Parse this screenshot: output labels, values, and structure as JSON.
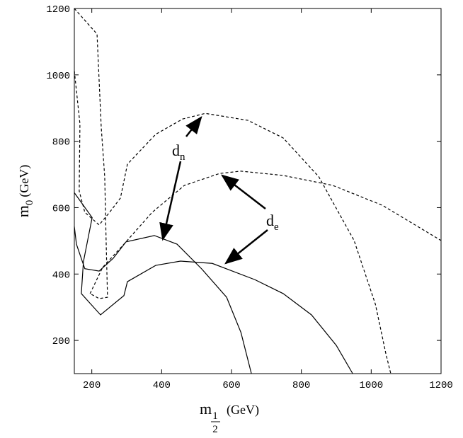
{
  "chart_data": {
    "type": "line",
    "x_label": {
      "main": "m",
      "sub_num": "1",
      "sub_den": "2",
      "unit": "(GeV)"
    },
    "y_label": {
      "main": "m",
      "sub": "0",
      "unit": "(GeV)"
    },
    "annotations": [
      {
        "text": "d",
        "sub": "n"
      },
      {
        "text": "d",
        "sub": "e"
      }
    ],
    "xlim": [
      150,
      1200
    ],
    "xticks": [
      200,
      400,
      600,
      800,
      1000,
      1200
    ],
    "ylim": [
      100,
      1200
    ],
    "yticks": [
      200,
      400,
      600,
      800,
      1000,
      1200
    ],
    "series": [
      {
        "color": "#000000",
        "dash": false,
        "x": [
          150,
          156,
          180,
          221,
          261,
          298,
          379,
          444,
          515,
          586,
          627,
          657
        ],
        "values": [
          543,
          490,
          416,
          409,
          447,
          497,
          516,
          490,
          415,
          330,
          224,
          100
        ]
      },
      {
        "color": "#000000",
        "dash": false,
        "x": [
          150,
          201,
          176,
          170,
          225,
          292,
          302,
          383,
          454,
          545,
          667,
          748,
          829,
          900,
          947
        ],
        "values": [
          645,
          570,
          437,
          341,
          277,
          335,
          377,
          426,
          439,
          432,
          383,
          341,
          277,
          185,
          100
        ]
      },
      {
        "color": "#000000",
        "dash": true,
        "x": [
          150,
          215,
          227,
          237,
          241,
          245,
          221,
          195
        ],
        "values": [
          1200,
          1123,
          842,
          693,
          501,
          330,
          326,
          341
        ]
      },
      {
        "color": "#000000",
        "dash": true,
        "x": [
          150,
          166,
          164,
          180,
          221,
          251,
          282,
          302,
          383,
          460,
          525,
          647,
          748,
          850,
          951,
          1012,
          1042,
          1056
        ],
        "values": [
          1012,
          853,
          650,
          586,
          548,
          586,
          629,
          731,
          821,
          867,
          884,
          863,
          810,
          693,
          501,
          309,
          160,
          100
        ]
      },
      {
        "color": "#000000",
        "dash": true,
        "x": [
          195,
          231,
          292,
          373,
          465,
          566,
          627,
          748,
          890,
          1032,
          1200
        ],
        "values": [
          341,
          420,
          490,
          586,
          667,
          703,
          710,
          697,
          667,
          607,
          501
        ]
      }
    ]
  }
}
